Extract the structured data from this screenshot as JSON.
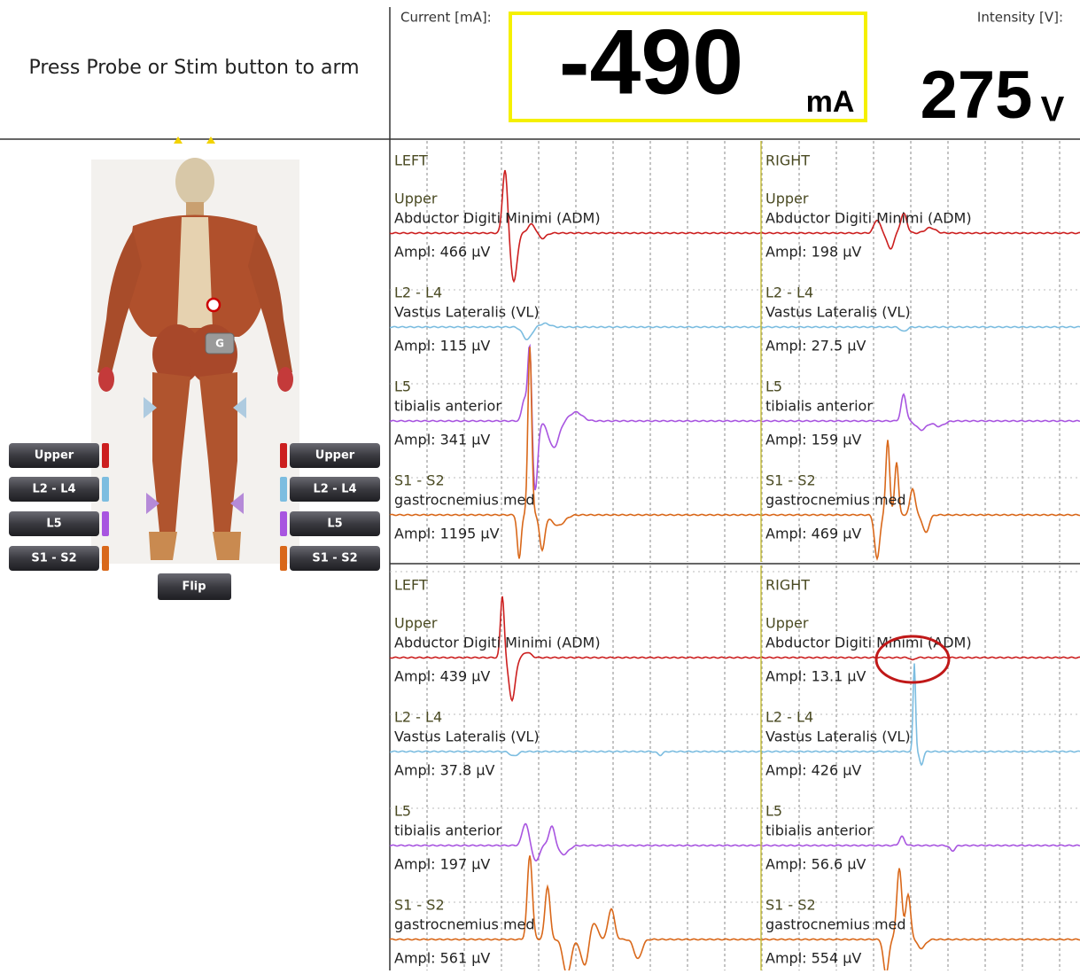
{
  "header": {
    "prompt": "Press Probe or Stim button to arm",
    "current_label": "Current [mA]:",
    "current_value": "-490",
    "current_unit": "mA",
    "intensity_label": "Intensity [V]:",
    "intensity_value": "275",
    "intensity_unit": "V"
  },
  "body_panel": {
    "ground_marker": "G",
    "left_buttons": [
      "Upper",
      "L2 - L4",
      "L5",
      "S1 - S2"
    ],
    "right_buttons": [
      "Upper",
      "L2 - L4",
      "L5",
      "S1 - S2"
    ],
    "flip_button": "Flip"
  },
  "traces": [
    {
      "columns": [
        {
          "side": "LEFT",
          "channels": [
            {
              "root": "Upper",
              "muscle": "Abductor Digiti Minimi (ADM)",
              "amplitude": "Ampl: 466 µV"
            },
            {
              "root": "L2 - L4",
              "muscle": "Vastus Lateralis (VL)",
              "amplitude": "Ampl: 115 µV"
            },
            {
              "root": "L5",
              "muscle": "tibialis anterior",
              "amplitude": "Ampl: 341 µV"
            },
            {
              "root": "S1 - S2",
              "muscle": "gastrocnemius med",
              "amplitude": "Ampl: 1195 µV"
            }
          ]
        },
        {
          "side": "RIGHT",
          "channels": [
            {
              "root": "Upper",
              "muscle": "Abductor Digiti Minimi (ADM)",
              "amplitude": "Ampl: 198 µV"
            },
            {
              "root": "L2 - L4",
              "muscle": "Vastus Lateralis (VL)",
              "amplitude": "Ampl: 27.5 µV"
            },
            {
              "root": "L5",
              "muscle": "tibialis anterior",
              "amplitude": "Ampl: 159 µV"
            },
            {
              "root": "S1 - S2",
              "muscle": "gastrocnemius med",
              "amplitude": "Ampl: 469 µV"
            }
          ]
        }
      ]
    },
    {
      "columns": [
        {
          "side": "LEFT",
          "channels": [
            {
              "root": "Upper",
              "muscle": "Abductor Digiti Minimi (ADM)",
              "amplitude": "Ampl: 439 µV"
            },
            {
              "root": "L2 - L4",
              "muscle": "Vastus Lateralis (VL)",
              "amplitude": "Ampl: 37.8 µV"
            },
            {
              "root": "L5",
              "muscle": "tibialis anterior",
              "amplitude": "Ampl: 197 µV"
            },
            {
              "root": "S1 - S2",
              "muscle": "gastrocnemius med",
              "amplitude": "Ampl: 561 µV"
            }
          ]
        },
        {
          "side": "RIGHT",
          "channels": [
            {
              "root": "Upper",
              "muscle": "Abductor Digiti Minimi (ADM)",
              "amplitude": "Ampl: 13.1 µV"
            },
            {
              "root": "L2 - L4",
              "muscle": "Vastus Lateralis (VL)",
              "amplitude": "Ampl: 426 µV"
            },
            {
              "root": "L5",
              "muscle": "tibialis anterior",
              "amplitude": "Ampl: 56.6 µV"
            },
            {
              "root": "S1 - S2",
              "muscle": "gastrocnemius med",
              "amplitude": "Ampl: 554 µV"
            }
          ]
        }
      ]
    }
  ]
}
